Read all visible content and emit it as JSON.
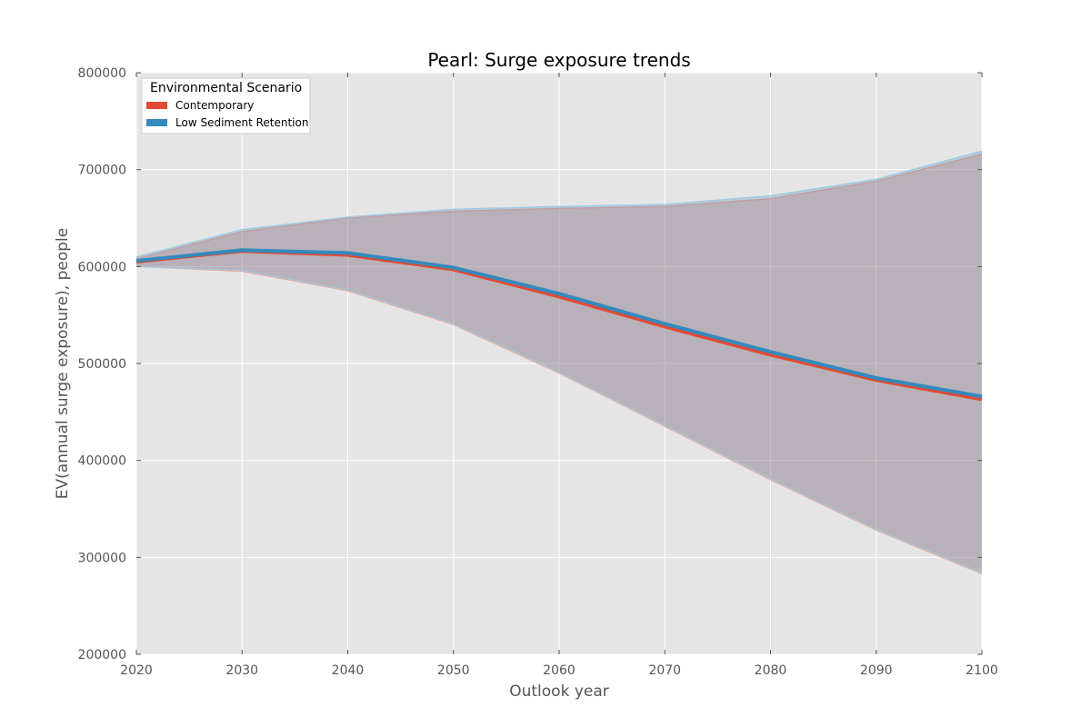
{
  "chart_data": {
    "type": "area",
    "title": "Pearl: Surge exposure trends",
    "xlabel": "Outlook year",
    "ylabel": "EV(annual surge exposure), people",
    "x": [
      2020,
      2030,
      2040,
      2050,
      2060,
      2070,
      2080,
      2090,
      2100
    ],
    "xlim": [
      2020,
      2100
    ],
    "ylim": [
      200000,
      800000
    ],
    "xticks": [
      "2020",
      "2030",
      "2040",
      "2050",
      "2060",
      "2070",
      "2080",
      "2090",
      "2100"
    ],
    "yticks": [
      "200000",
      "300000",
      "400000",
      "500000",
      "600000",
      "700000",
      "800000"
    ],
    "grid": true,
    "legend": {
      "title": "Environmental Scenario",
      "position": "top-left"
    },
    "series": [
      {
        "name": "Contemporary",
        "color": "#E24A33",
        "values": [
          605000,
          616000,
          612000,
          597000,
          569000,
          538000,
          509000,
          483000,
          463000
        ],
        "lower": [
          600000,
          595000,
          575000,
          540000,
          490000,
          435000,
          380000,
          328000,
          283000
        ],
        "upper": [
          608000,
          636000,
          650000,
          657000,
          660000,
          662000,
          670000,
          688000,
          716000
        ]
      },
      {
        "name": "Low Sediment Retention",
        "color": "#348ABD",
        "values": [
          606000,
          617000,
          614000,
          599000,
          572000,
          541000,
          512000,
          485000,
          466000
        ],
        "lower": [
          600000,
          596000,
          576000,
          541000,
          491000,
          436000,
          381000,
          329000,
          284000
        ],
        "upper": [
          610000,
          638000,
          651000,
          659000,
          662000,
          664000,
          673000,
          690000,
          719000
        ]
      }
    ],
    "colors": {
      "plot_background": "#E5E5E5",
      "band_fill": "#988ED5"
    }
  }
}
